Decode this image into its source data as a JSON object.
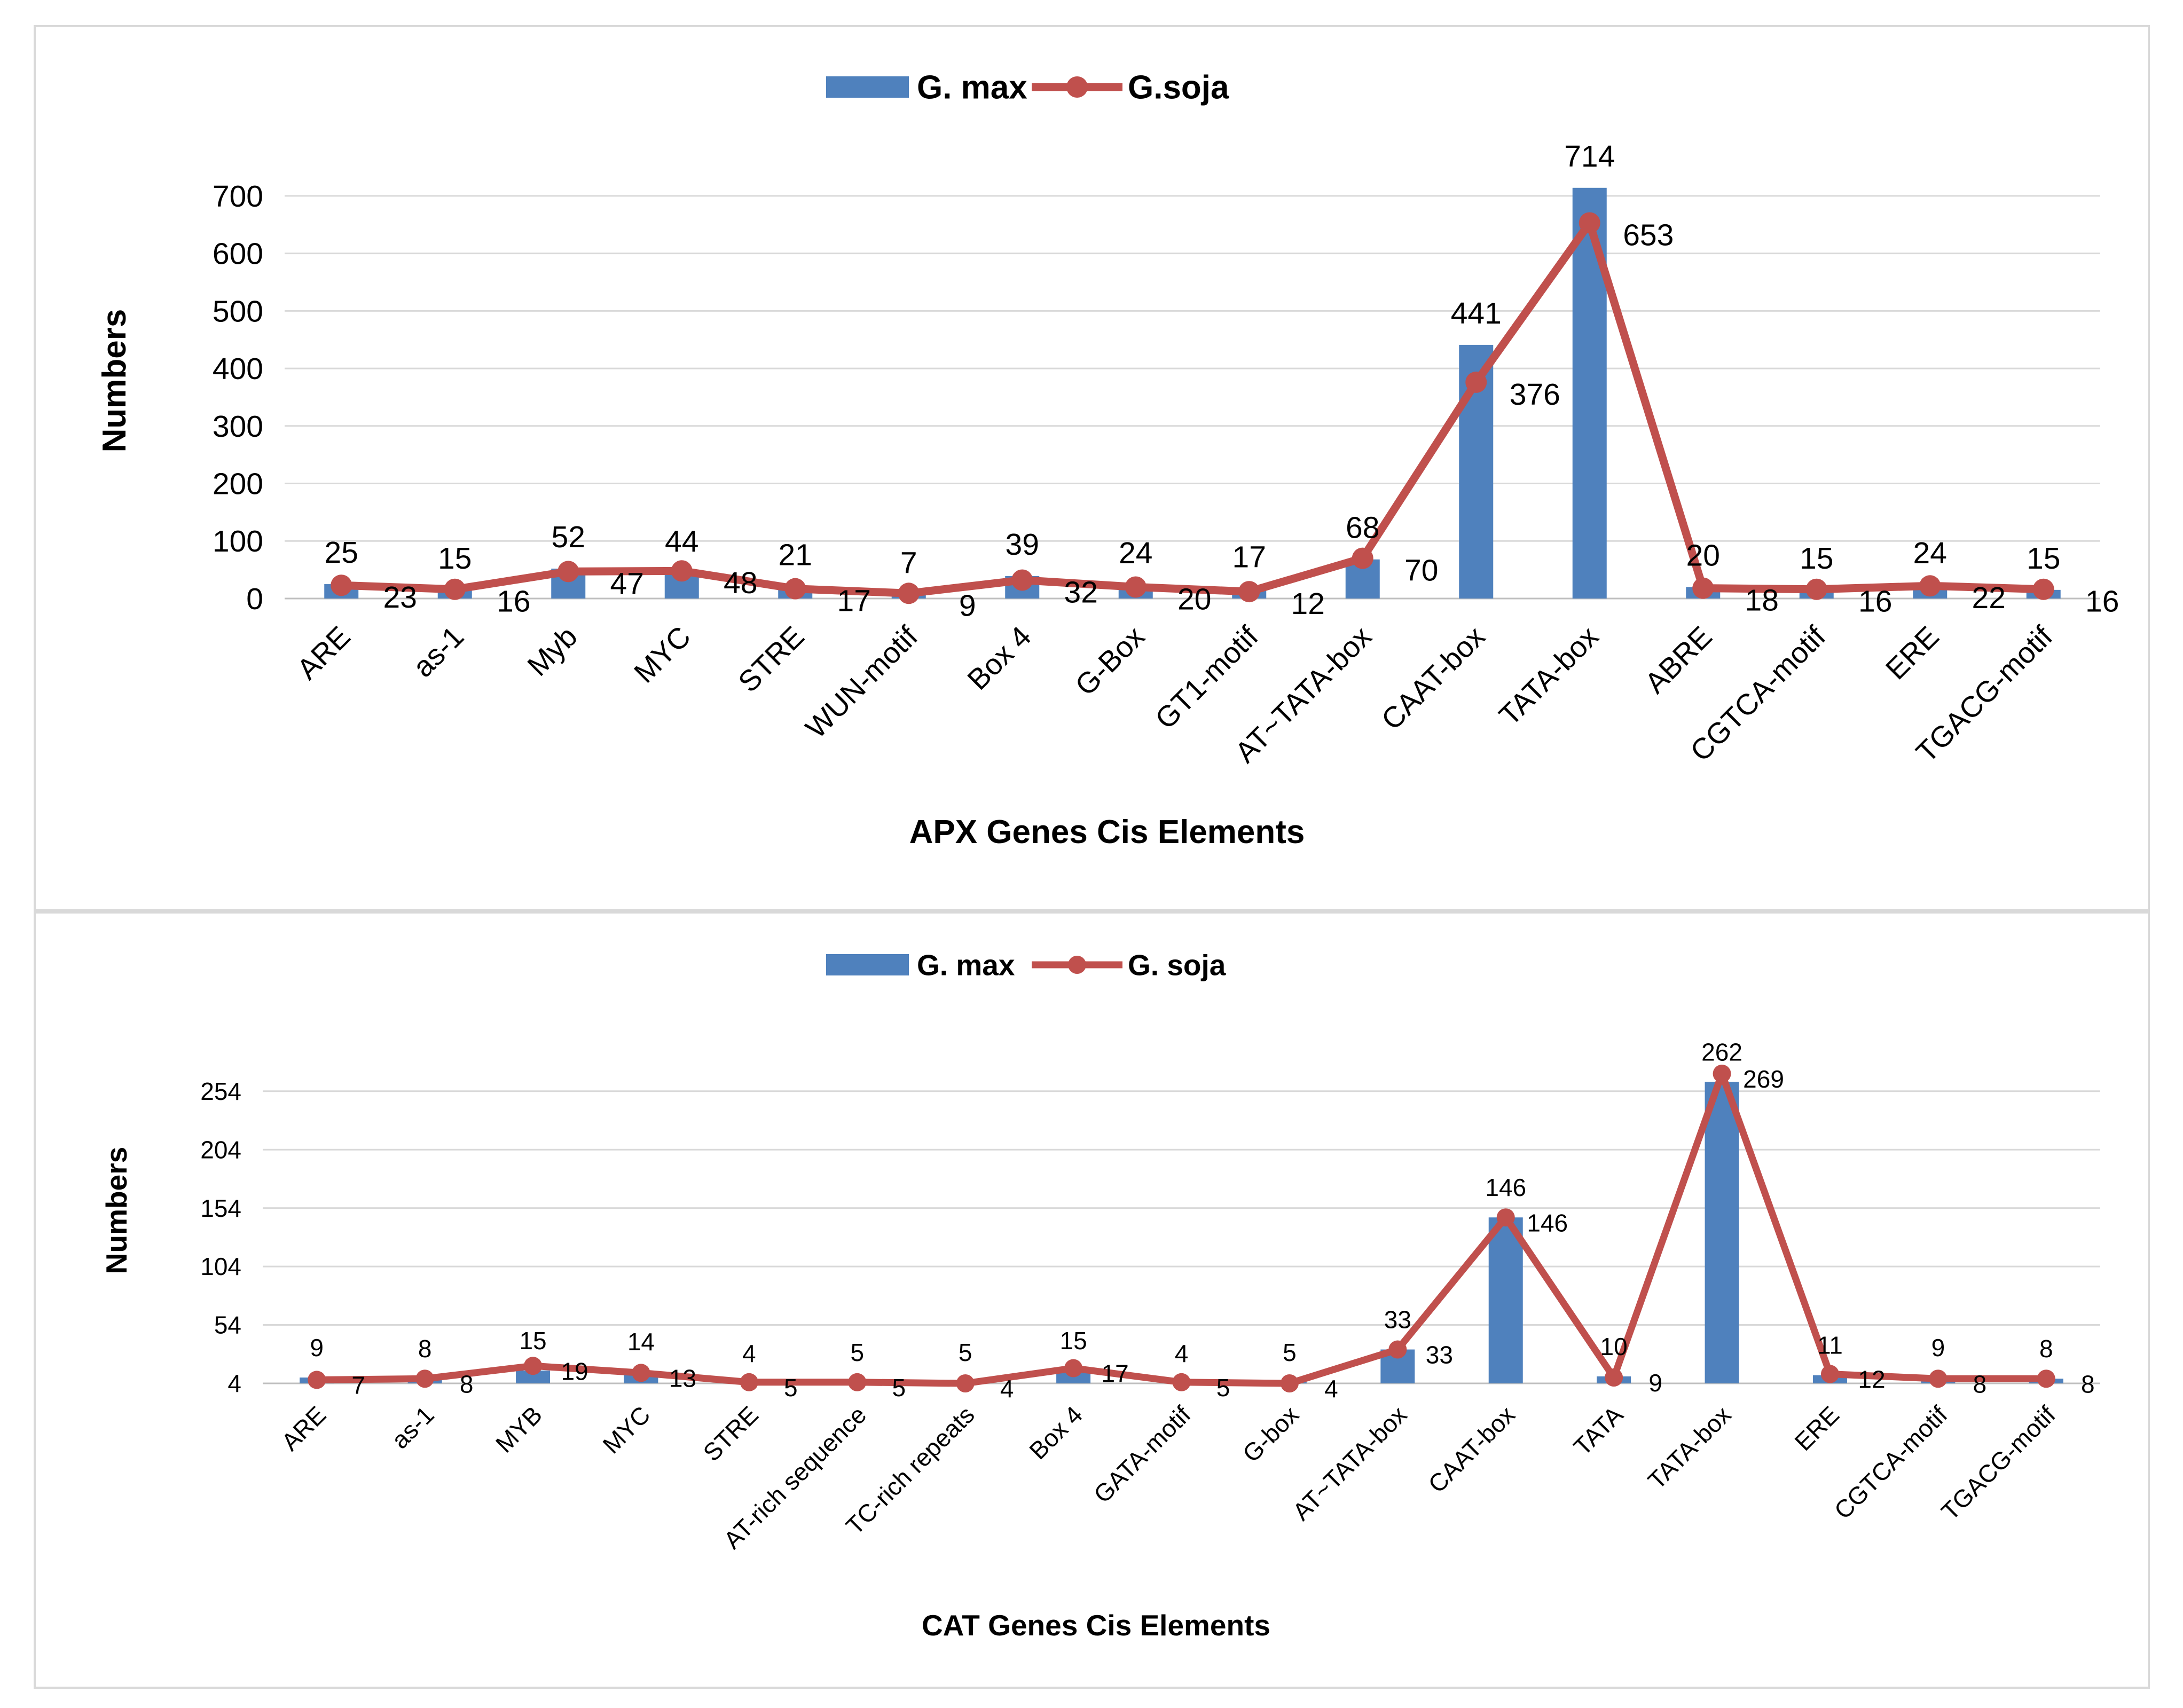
{
  "colors": {
    "bar": "#4f81bd",
    "line": "#c0504d"
  },
  "chart_data": [
    {
      "type": "bar",
      "title": "APX Genes Cis Elements",
      "xlabel": "APX Genes Cis Elements",
      "ylabel": "Numbers",
      "ylim": [
        0,
        750
      ],
      "yticks": [
        0,
        100,
        200,
        300,
        400,
        500,
        600,
        700
      ],
      "legend": "top-center",
      "categories": [
        "ARE",
        "as-1",
        "Myb",
        "MYC",
        "STRE",
        "WUN-motif",
        "Box 4",
        "G-Box",
        "GT1-motif",
        "AT~TATA-box",
        "CAAT-box",
        "TATA-box",
        "ABRE",
        "CGTCA-motif",
        "ERE",
        "TGACG-motif"
      ],
      "series": [
        {
          "name": "G. max",
          "kind": "bar",
          "values": [
            25,
            15,
            52,
            44,
            21,
            7,
            39,
            24,
            17,
            68,
            441,
            714,
            20,
            15,
            24,
            15
          ]
        },
        {
          "name": "G.soja",
          "kind": "line",
          "values": [
            23,
            16,
            47,
            48,
            17,
            9,
            32,
            20,
            12,
            70,
            376,
            653,
            18,
            16,
            22,
            16
          ]
        }
      ]
    },
    {
      "type": "bar",
      "title": "CAT Genes Cis Elements",
      "xlabel": "CAT Genes Cis Elements",
      "ylabel": "Numbers",
      "ylim": [
        4,
        290
      ],
      "yticks": [
        4,
        54,
        104,
        154,
        204,
        254
      ],
      "legend": "top-center",
      "categories": [
        "ARE",
        "as-1",
        "MYB",
        "MYC",
        "STRE",
        "AT-rich sequence",
        "TC-rich repeats",
        "Box 4",
        "GATA-motif",
        "G-box",
        "AT~TATA-box",
        "CAAT-box",
        "TATA",
        "TATA-box",
        "ERE",
        "CGTCA-motif",
        "TGACG-motif"
      ],
      "series": [
        {
          "name": "G. max",
          "kind": "bar",
          "values": [
            9,
            8,
            15,
            14,
            4,
            5,
            5,
            15,
            4,
            5,
            33,
            146,
            10,
            262,
            11,
            9,
            8
          ]
        },
        {
          "name": "G. soja",
          "kind": "line",
          "values": [
            7,
            8,
            19,
            13,
            5,
            5,
            4,
            17,
            5,
            4,
            33,
            146,
            9,
            269,
            12,
            8,
            8
          ]
        }
      ]
    }
  ]
}
